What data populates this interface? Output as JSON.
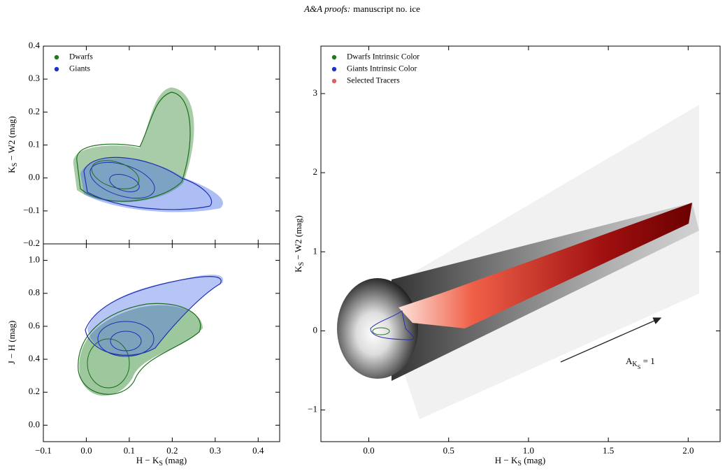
{
  "header": {
    "journal": "A&A proofs:",
    "rest": "manuscript no. ice"
  },
  "chart_data": [
    {
      "type": "scatter",
      "ylabel": [
        {
          "text": "K"
        },
        {
          "text": "S",
          "sub": 1
        },
        {
          "text": " − W2 (mag)"
        }
      ],
      "xlim": [
        -0.1,
        0.45
      ],
      "xticks": [
        -0.1,
        0,
        0.1,
        0.2,
        0.3,
        0.4
      ],
      "show_xticklabels": false,
      "ylim": [
        -0.2,
        0.4
      ],
      "yticks": [
        {
          "value": -0.2,
          "label": "−0.2"
        },
        {
          "value": -0.1,
          "label": "−0.1"
        },
        {
          "value": 0,
          "label": "0.0"
        },
        0.1,
        0.2,
        0.3,
        0.4
      ],
      "legend": "upper left",
      "series": [
        {
          "name": "Dwarfs",
          "color": "#1e7a1e"
        },
        {
          "name": "Giants",
          "color": "#1f2fd0"
        }
      ]
    },
    {
      "type": "scatter",
      "xlabel": [
        {
          "text": "H − K"
        },
        {
          "text": "S",
          "sub": 1
        },
        {
          "text": " (mag)"
        }
      ],
      "ylabel": [
        {
          "text": "J − H (mag)"
        }
      ],
      "xlim": [
        -0.1,
        0.45
      ],
      "xticks": [
        {
          "value": -0.1,
          "label": "−0.1"
        },
        {
          "value": 0,
          "label": "0.0"
        },
        0.1,
        0.2,
        0.3,
        0.4
      ],
      "show_xticklabels": true,
      "ylim": [
        -0.1,
        1.1
      ],
      "yticks": [
        {
          "value": 0,
          "label": "0.0"
        },
        0.2,
        0.4,
        0.6,
        0.8,
        {
          "value": 1,
          "label": "1.0"
        }
      ]
    },
    {
      "type": "scatter",
      "xlabel": [
        {
          "text": "H − K"
        },
        {
          "text": "S",
          "sub": 1
        },
        {
          "text": " (mag)"
        }
      ],
      "ylabel": [
        {
          "text": "K"
        },
        {
          "text": "S",
          "sub": 1
        },
        {
          "text": " − W2 (mag)"
        }
      ],
      "xlim": [
        -0.3,
        2.2
      ],
      "xticks": [
        {
          "value": 0,
          "label": "0.0"
        },
        0.5,
        {
          "value": 1,
          "label": "1.0"
        },
        1.5,
        {
          "value": 2,
          "label": "2.0"
        }
      ],
      "show_xticklabels": true,
      "ylim": [
        -1.4,
        3.6
      ],
      "yticks": [
        {
          "value": -1,
          "label": "−1"
        },
        0,
        1,
        2,
        3
      ],
      "legend": "upper left",
      "series": [
        {
          "name": "Dwarfs Intrinsic Color",
          "color": "#1e7a1e"
        },
        {
          "name": "Giants Intrinsic Color",
          "color": "#1f2fd0"
        },
        {
          "name": "Selected Tracers",
          "color": "#e06060"
        }
      ],
      "annotation": [
        {
          "text": "A"
        },
        {
          "text": "K",
          "sub": 1
        },
        {
          "text": "S",
          "sub": 2
        },
        {
          "text": " = 1"
        }
      ]
    }
  ]
}
